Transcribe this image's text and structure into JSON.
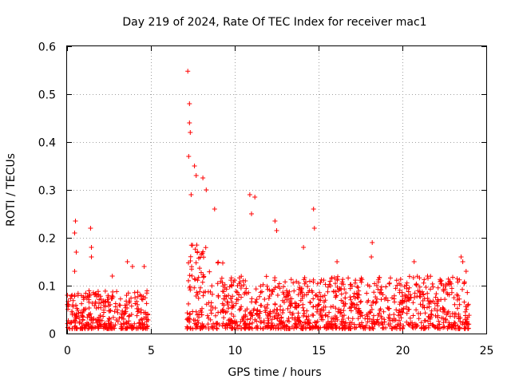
{
  "chart_data": {
    "type": "scatter",
    "title": "Day 219 of 2024, Rate Of TEC Index for receiver mac1",
    "xlabel": "GPS time / hours",
    "ylabel": "ROTI / TECUs",
    "xlim": [
      0,
      25
    ],
    "ylim": [
      0,
      0.6
    ],
    "xticks": [
      0,
      5,
      10,
      15,
      20,
      25
    ],
    "xtick_labels": [
      "0",
      "5",
      "10",
      "15",
      "20",
      "25"
    ],
    "yticks": [
      0,
      0.1,
      0.2,
      0.3,
      0.4,
      0.5,
      0.6
    ],
    "ytick_labels": [
      "0",
      "0.1",
      "0.2",
      "0.3",
      "0.4",
      "0.5",
      "0.6"
    ],
    "grid": true,
    "marker": "+",
    "color": "#ff0000",
    "data_gap_hours": [
      4.85,
      7.15
    ],
    "series": [
      {
        "name": "ROTI",
        "segments": [
          {
            "x_start": 0.0,
            "x_end": 4.85,
            "typical_max": 0.09,
            "baseline": 0.01
          },
          {
            "x_start": 7.15,
            "x_end": 24.0,
            "typical_max": 0.12,
            "baseline": 0.01
          }
        ],
        "peaks": [
          {
            "x": 0.1,
            "y": 0.06
          },
          {
            "x": 0.45,
            "y": 0.21
          },
          {
            "x": 0.5,
            "y": 0.235
          },
          {
            "x": 0.55,
            "y": 0.17
          },
          {
            "x": 0.45,
            "y": 0.13
          },
          {
            "x": 1.4,
            "y": 0.22
          },
          {
            "x": 1.45,
            "y": 0.18
          },
          {
            "x": 1.45,
            "y": 0.16
          },
          {
            "x": 2.7,
            "y": 0.12
          },
          {
            "x": 3.6,
            "y": 0.15
          },
          {
            "x": 3.9,
            "y": 0.14
          },
          {
            "x": 4.6,
            "y": 0.14
          },
          {
            "x": 7.2,
            "y": 0.548
          },
          {
            "x": 7.3,
            "y": 0.48
          },
          {
            "x": 7.3,
            "y": 0.44
          },
          {
            "x": 7.35,
            "y": 0.42
          },
          {
            "x": 7.25,
            "y": 0.37
          },
          {
            "x": 7.6,
            "y": 0.35
          },
          {
            "x": 7.7,
            "y": 0.33
          },
          {
            "x": 8.1,
            "y": 0.325
          },
          {
            "x": 8.3,
            "y": 0.3
          },
          {
            "x": 7.4,
            "y": 0.29
          },
          {
            "x": 8.8,
            "y": 0.26
          },
          {
            "x": 10.9,
            "y": 0.29
          },
          {
            "x": 11.2,
            "y": 0.285
          },
          {
            "x": 11.0,
            "y": 0.25
          },
          {
            "x": 12.4,
            "y": 0.235
          },
          {
            "x": 12.5,
            "y": 0.215
          },
          {
            "x": 14.7,
            "y": 0.26
          },
          {
            "x": 14.75,
            "y": 0.22
          },
          {
            "x": 14.1,
            "y": 0.18
          },
          {
            "x": 16.1,
            "y": 0.15
          },
          {
            "x": 18.2,
            "y": 0.19
          },
          {
            "x": 18.15,
            "y": 0.16
          },
          {
            "x": 20.7,
            "y": 0.15
          },
          {
            "x": 21.5,
            "y": 0.12
          },
          {
            "x": 22.3,
            "y": 0.11
          },
          {
            "x": 23.5,
            "y": 0.16
          },
          {
            "x": 23.6,
            "y": 0.15
          },
          {
            "x": 23.8,
            "y": 0.13
          }
        ]
      }
    ]
  }
}
